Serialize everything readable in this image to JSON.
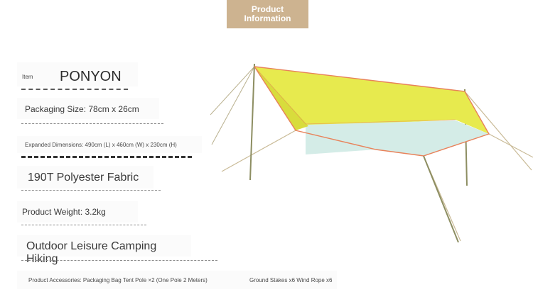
{
  "header": {
    "line1": "Product",
    "line2": "Information"
  },
  "specs": {
    "item_label": "Item",
    "item_value": "PONYON",
    "packaging_size": "Packaging Size: 78cm x 26cm",
    "expanded_dimensions": "Expanded Dimensions: 490cm (L) x 460cm (W) x 230cm (H)",
    "fabric": "190T Polyester Fabric",
    "weight": "Product Weight: 3.2kg",
    "usage": "Outdoor Leisure Camping Hiking",
    "accessories_left": "Product Accessories: Packaging Bag Tent Pole ×2 (One Pole 2 Meters)",
    "accessories_right": "Ground Stakes x6 Wind Rope x6"
  },
  "colors": {
    "badge": "#cdb390",
    "tarp_yellow": "#e7ea4e",
    "tarp_mint": "#d4ece7",
    "tarp_trim": "#e8825a",
    "pole": "#8d8e62"
  },
  "image": {
    "subject": "canopy-tarp-tent"
  }
}
